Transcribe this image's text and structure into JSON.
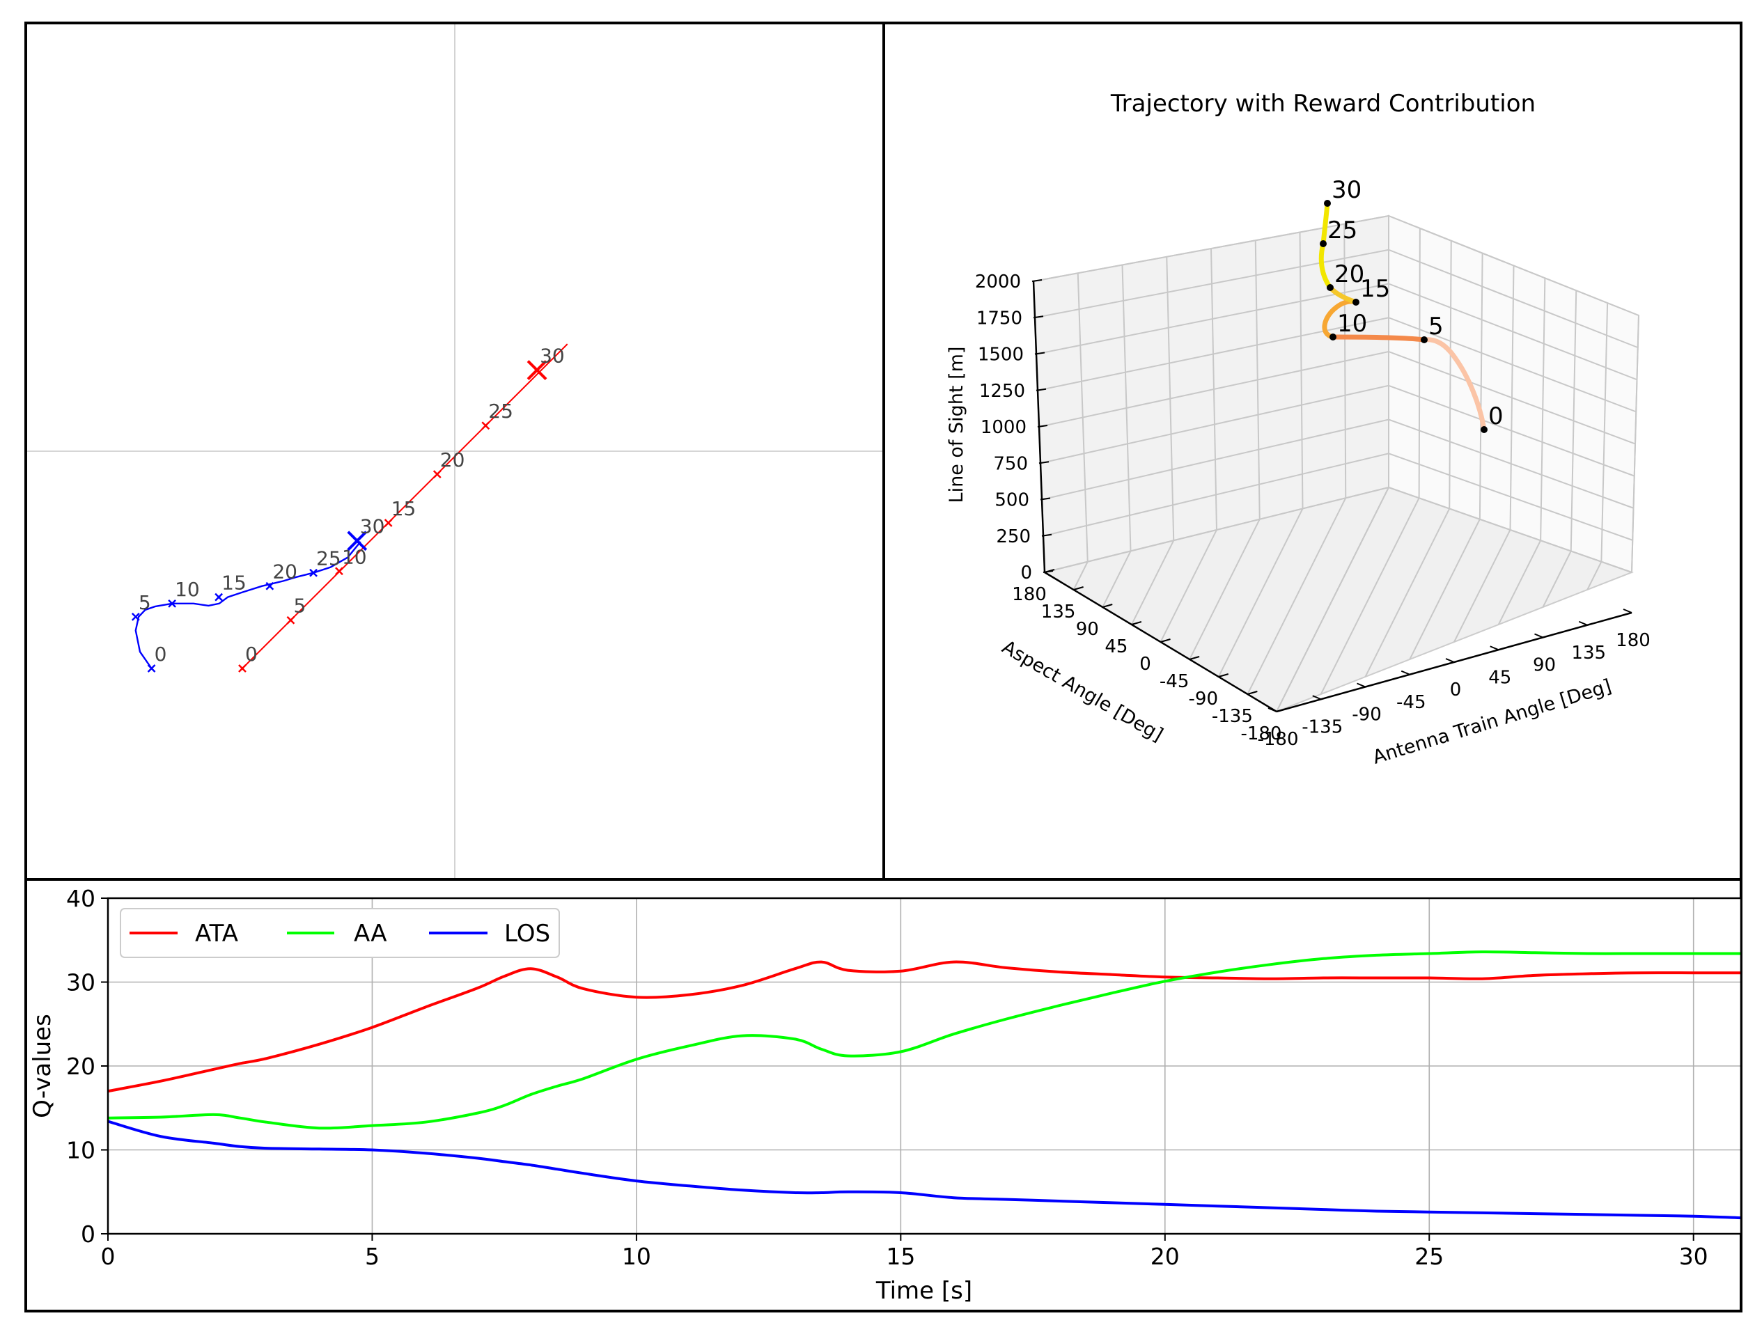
{
  "colors": {
    "ata": "#ff0000",
    "aa": "#00ff00",
    "los": "#0000ff",
    "red": "#ff0000",
    "blue": "#0000ff",
    "grid": "#b0b0b0",
    "frame": "#000000",
    "traj_start": "#fbc4a6",
    "traj_mid": "#f4894a",
    "traj_orange": "#f7a733",
    "traj_end": "#f2e600"
  },
  "chart_data": [
    {
      "type": "scatter",
      "title": "",
      "xlabel": "",
      "ylabel": "",
      "xlim": [
        -1,
        1
      ],
      "ylim": [
        -1,
        1
      ],
      "grid": "center crosshair",
      "series": [
        {
          "name": "red aircraft",
          "color": "#ff0000",
          "line": [
            [
              -0.496,
              -0.509
            ],
            [
              0.263,
              0.251
            ]
          ],
          "markers": [
            {
              "label": "0",
              "x": -0.496,
              "y": -0.509
            },
            {
              "label": "5",
              "x": -0.383,
              "y": -0.396
            },
            {
              "label": "10",
              "x": -0.27,
              "y": -0.281
            },
            {
              "label": "15",
              "x": -0.155,
              "y": -0.168
            },
            {
              "label": "20",
              "x": -0.041,
              "y": -0.054
            },
            {
              "label": "25",
              "x": 0.072,
              "y": 0.06
            },
            {
              "label": "30",
              "x": 0.192,
              "y": 0.19
            }
          ]
        },
        {
          "name": "blue aircraft",
          "color": "#0000ff",
          "path": [
            [
              -0.708,
              -0.509
            ],
            [
              -0.735,
              -0.47
            ],
            [
              -0.745,
              -0.42
            ],
            [
              -0.738,
              -0.388
            ],
            [
              -0.723,
              -0.372
            ],
            [
              -0.7,
              -0.364
            ],
            [
              -0.66,
              -0.357
            ],
            [
              -0.61,
              -0.357
            ],
            [
              -0.575,
              -0.362
            ],
            [
              -0.55,
              -0.357
            ],
            [
              -0.53,
              -0.342
            ],
            [
              -0.497,
              -0.331
            ],
            [
              -0.45,
              -0.316
            ],
            [
              -0.4,
              -0.304
            ],
            [
              -0.37,
              -0.295
            ],
            [
              -0.33,
              -0.285
            ],
            [
              -0.29,
              -0.272
            ],
            [
              -0.25,
              -0.249
            ],
            [
              -0.22,
              -0.212
            ]
          ],
          "markers": [
            {
              "label": "0",
              "x": -0.708,
              "y": -0.509
            },
            {
              "label": "5",
              "x": -0.745,
              "y": -0.388
            },
            {
              "label": "10",
              "x": -0.66,
              "y": -0.357
            },
            {
              "label": "15",
              "x": -0.551,
              "y": -0.342
            },
            {
              "label": "20",
              "x": -0.432,
              "y": -0.316
            },
            {
              "label": "25",
              "x": -0.33,
              "y": -0.285
            },
            {
              "label": "30",
              "x": -0.228,
              "y": -0.21
            }
          ]
        }
      ]
    },
    {
      "type": "line3d",
      "title": "Trajectory with Reward Contribution",
      "xlabel": "Antenna Train Angle [Deg]",
      "ylabel": "Aspect Angle [Deg]",
      "zlabel": "Line of Sight [m]",
      "xlim": [
        -180,
        180
      ],
      "ylim": [
        -180,
        180
      ],
      "zlim": [
        0,
        2000
      ],
      "xticks": [
        "-180",
        "-135",
        "-90",
        "-45",
        "0",
        "45",
        "90",
        "135",
        "180"
      ],
      "yticks": [
        "180",
        "135",
        "90",
        "45",
        "0",
        "-45",
        "-90",
        "-135",
        "-180"
      ],
      "zticks": [
        "0",
        "250",
        "500",
        "750",
        "1000",
        "1250",
        "1500",
        "1750",
        "2000"
      ],
      "annotations": [
        {
          "label": "0",
          "time": 0
        },
        {
          "label": "5",
          "time": 5
        },
        {
          "label": "10",
          "time": 10
        },
        {
          "label": "15",
          "time": 15
        },
        {
          "label": "20",
          "time": 20
        },
        {
          "label": "25",
          "time": 25
        },
        {
          "label": "30",
          "time": 30
        }
      ]
    },
    {
      "type": "line",
      "title": "",
      "xlabel": "Time [s]",
      "ylabel": "Q-values",
      "xlim": [
        0,
        30.9
      ],
      "ylim": [
        0,
        40
      ],
      "xticks": [
        "0",
        "5",
        "10",
        "15",
        "20",
        "25",
        "30"
      ],
      "yticks": [
        "0",
        "10",
        "20",
        "30",
        "40"
      ],
      "grid": true,
      "legend": "top-left",
      "x": [
        0,
        1,
        2,
        2.5,
        3,
        4,
        5,
        6,
        7,
        7.5,
        8,
        8.5,
        9,
        10,
        11,
        12,
        13,
        13.5,
        14,
        15,
        16,
        17,
        18,
        19,
        20,
        21,
        22,
        23,
        24,
        25,
        26,
        27,
        28,
        29,
        30,
        30.9
      ],
      "series": [
        {
          "name": "ATA",
          "color": "#ff0000",
          "values": [
            17.0,
            18.2,
            19.6,
            20.3,
            20.9,
            22.6,
            24.6,
            27.0,
            29.3,
            30.7,
            31.6,
            30.6,
            29.2,
            28.2,
            28.5,
            29.6,
            31.6,
            32.4,
            31.4,
            31.3,
            32.4,
            31.7,
            31.2,
            30.9,
            30.6,
            30.5,
            30.4,
            30.5,
            30.5,
            30.5,
            30.4,
            30.8,
            31.0,
            31.1,
            31.1,
            31.1
          ]
        },
        {
          "name": "AA",
          "color": "#00ff00",
          "values": [
            13.8,
            13.9,
            14.2,
            13.8,
            13.3,
            12.6,
            12.9,
            13.3,
            14.4,
            15.3,
            16.6,
            17.6,
            18.5,
            20.8,
            22.4,
            23.6,
            23.2,
            22.0,
            21.2,
            21.7,
            23.8,
            25.6,
            27.2,
            28.7,
            30.1,
            31.2,
            32.1,
            32.8,
            33.2,
            33.4,
            33.6,
            33.5,
            33.4,
            33.4,
            33.4,
            33.4
          ]
        },
        {
          "name": "LOS",
          "color": "#0000ff",
          "values": [
            13.4,
            11.6,
            10.8,
            10.4,
            10.2,
            10.1,
            10.0,
            9.6,
            9.0,
            8.6,
            8.2,
            7.7,
            7.2,
            6.3,
            5.7,
            5.2,
            4.9,
            4.9,
            5.0,
            4.9,
            4.3,
            4.1,
            3.9,
            3.7,
            3.5,
            3.3,
            3.1,
            2.9,
            2.7,
            2.6,
            2.5,
            2.4,
            2.3,
            2.2,
            2.1,
            1.9
          ]
        }
      ]
    }
  ]
}
